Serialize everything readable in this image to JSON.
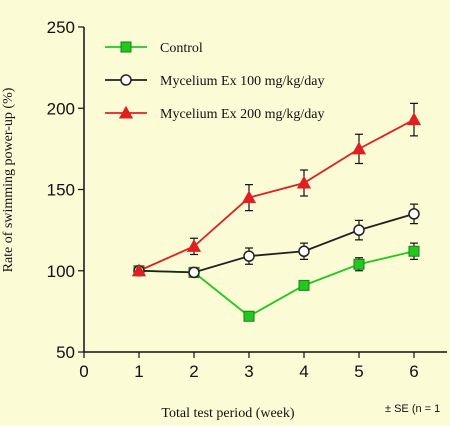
{
  "chart_data": {
    "type": "line",
    "xlabel": "Total test period (week)",
    "ylabel": "Rate of swimming power-up (%)",
    "xlim": [
      0,
      6.6
    ],
    "ylim": [
      50,
      250
    ],
    "x_ticks": [
      0,
      1,
      2,
      3,
      4,
      5,
      6
    ],
    "y_ticks": [
      50,
      100,
      150,
      200,
      250
    ],
    "note": "± SE (n = 1",
    "legend_position": "top-left",
    "grid": false,
    "series": [
      {
        "name": "Control",
        "color": "#22c81e",
        "marker": "square",
        "x": [
          1,
          2,
          3,
          4,
          5,
          6
        ],
        "values": [
          100,
          99,
          72,
          91,
          104,
          112
        ],
        "error": [
          0,
          2,
          0,
          0,
          4,
          5
        ]
      },
      {
        "name": "Mycelium Ex 100 mg/kg/day",
        "color": "#222222",
        "marker": "circle",
        "x": [
          1,
          2,
          3,
          4,
          5,
          6
        ],
        "values": [
          100,
          99,
          109,
          112,
          125,
          135
        ],
        "error": [
          0,
          0,
          5,
          5,
          6,
          6
        ]
      },
      {
        "name": "Mycelium Ex 200 mg/kg/day",
        "color": "#e02020",
        "marker": "triangle",
        "x": [
          1,
          2,
          3,
          4,
          5,
          6
        ],
        "values": [
          100,
          115,
          145,
          154,
          175,
          193
        ],
        "error": [
          0,
          5,
          8,
          8,
          9,
          10
        ]
      }
    ]
  }
}
